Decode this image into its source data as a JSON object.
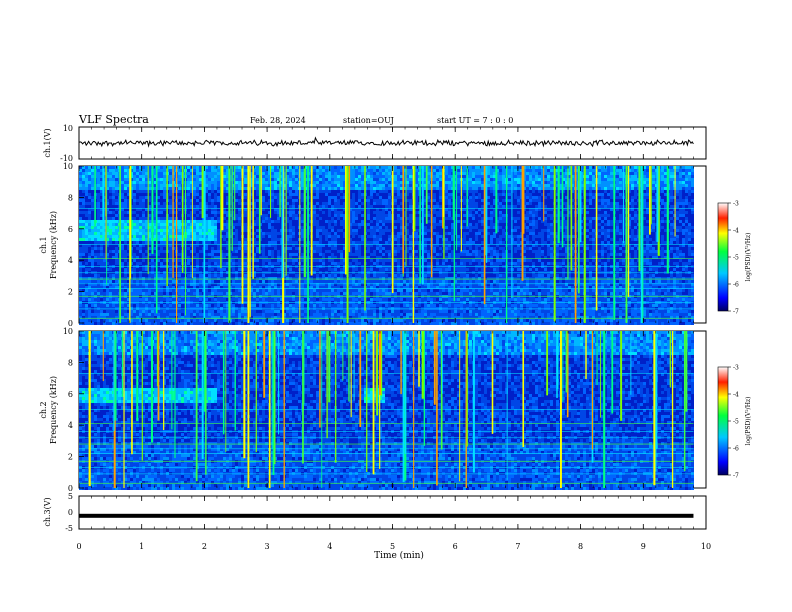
{
  "header": {
    "title": "VLF Spectra",
    "date": "Feb. 28, 2024",
    "station": "station=OUJ",
    "start": "start  UT =   7 : 0  : 0"
  },
  "chart_data": [
    {
      "type": "line",
      "panel": "ch1-waveform",
      "ylabel": "ch.1(V)",
      "ylim": [
        -10,
        10
      ],
      "yticks": [
        "10",
        "-10"
      ],
      "description_level": 0
    },
    {
      "type": "heatmap",
      "panel": "ch1-spectrogram",
      "ylabel_top": "ch.1",
      "ylabel": "Frequency  (kHz)",
      "ylim": [
        0,
        10
      ],
      "yticks": [
        "10",
        "8",
        "6",
        "4",
        "2",
        "0"
      ],
      "colorbar": {
        "range": [
          -7,
          -3
        ],
        "ticks": [
          "-3",
          "-4",
          "-5",
          "-6",
          "-7"
        ],
        "label": "log(PSD)(V²/Hz)"
      },
      "emission_band_khz": [
        5.3,
        6.6
      ],
      "emission_band_min": [
        0,
        2.2
      ]
    },
    {
      "type": "heatmap",
      "panel": "ch2-spectrogram",
      "ylabel_top": "ch.2",
      "ylabel": "Frequency  (kHz)",
      "ylim": [
        0,
        10
      ],
      "yticks": [
        "10",
        "8",
        "6",
        "4",
        "2",
        "0"
      ],
      "colorbar": {
        "range": [
          -7,
          -3
        ],
        "ticks": [
          "-3",
          "-4",
          "-5",
          "-6",
          "-7"
        ],
        "label": "log(PSD)(V²/Hz)"
      },
      "emission_band_khz": [
        5.5,
        6.5
      ],
      "emission_band_min": [
        [
          0,
          2.2
        ],
        [
          4.5,
          4.85
        ]
      ]
    },
    {
      "type": "line",
      "panel": "ch3-waveform",
      "ylabel": "ch.3(V)",
      "ylim": [
        -5,
        5
      ],
      "yticks": [
        "5",
        "0",
        "-5"
      ],
      "level_v": -1.0
    }
  ],
  "xaxis": {
    "label": "Time  (min)",
    "range": [
      0,
      10
    ],
    "ticks": [
      "0",
      "1",
      "2",
      "3",
      "4",
      "5",
      "6",
      "7",
      "8",
      "9",
      "10"
    ],
    "data_end_min": 9.8
  }
}
